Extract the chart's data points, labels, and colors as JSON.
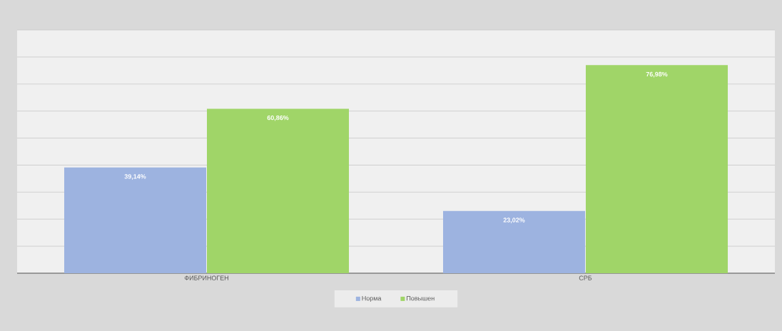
{
  "chart_data": {
    "type": "bar",
    "categories": [
      "ФИБРИНОГЕН",
      "СРБ"
    ],
    "series": [
      {
        "name": "Норма",
        "color": "#9db3e0",
        "values": [
          39.14,
          23.02
        ],
        "value_labels": [
          "39,14%",
          "23,02%"
        ]
      },
      {
        "name": "Повышен",
        "color": "#a0d568",
        "values": [
          60.86,
          76.98
        ],
        "value_labels": [
          "60,86%",
          "76,98%"
        ]
      }
    ],
    "ylim": [
      0,
      90
    ],
    "yticks": [
      {
        "value": 0,
        "label": null
      },
      {
        "value": 10,
        "label": null
      },
      {
        "value": 20,
        "label": null
      },
      {
        "value": 30,
        "label": null
      },
      {
        "value": 40,
        "label": null
      },
      {
        "value": 50,
        "label": null
      },
      {
        "value": 60,
        "label": null
      },
      {
        "value": 70,
        "label": null
      },
      {
        "value": 80,
        "label": null
      },
      {
        "value": 90,
        "label": null
      }
    ],
    "grid": "y",
    "legend": "bottom",
    "tick_labels": "x"
  }
}
